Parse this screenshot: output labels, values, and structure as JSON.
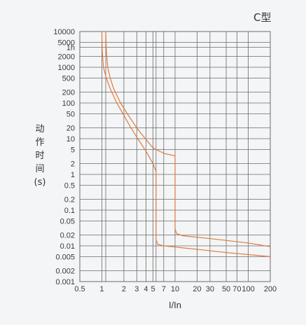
{
  "chart_data": {
    "type": "line",
    "title": "C型",
    "xlabel": "I/In",
    "ylabel": [
      "动",
      "作",
      "时",
      "间",
      "(s)"
    ],
    "x_scale": "log",
    "y_scale": "log",
    "xlim": [
      0.5,
      200
    ],
    "ylim": [
      0.001,
      10000
    ],
    "x_ticks": [
      {
        "value": 0.5,
        "label": "0.5"
      },
      {
        "value": 1,
        "label": "1"
      },
      {
        "value": 2,
        "label": "2"
      },
      {
        "value": 3,
        "label": "3"
      },
      {
        "value": 4,
        "label": "4"
      },
      {
        "value": 5,
        "label": "5"
      },
      {
        "value": 7,
        "label": "7"
      },
      {
        "value": 10,
        "label": "10"
      },
      {
        "value": 20,
        "label": "20"
      },
      {
        "value": 30,
        "label": "30"
      },
      {
        "value": 50,
        "label": "50"
      },
      {
        "value": 70,
        "label": "70"
      },
      {
        "value": 100,
        "label": "100"
      },
      {
        "value": 200,
        "label": "200"
      }
    ],
    "x_grid": [
      1,
      1.13,
      2,
      3,
      4,
      5,
      5.5,
      7,
      10,
      20,
      30,
      50,
      70,
      100,
      200
    ],
    "y_ticks": [
      {
        "value": 10000,
        "label": "10000"
      },
      {
        "value": 5000,
        "label": "5000"
      },
      {
        "value": 3600,
        "label": "1h"
      },
      {
        "value": 2000,
        "label": "2000"
      },
      {
        "value": 1000,
        "label": "1000"
      },
      {
        "value": 500,
        "label": "500"
      },
      {
        "value": 200,
        "label": "200"
      },
      {
        "value": 100,
        "label": "100"
      },
      {
        "value": 50,
        "label": "50"
      },
      {
        "value": 20,
        "label": "20"
      },
      {
        "value": 10,
        "label": "10"
      },
      {
        "value": 5,
        "label": "5"
      },
      {
        "value": 2,
        "label": "2"
      },
      {
        "value": 1,
        "label": "1"
      },
      {
        "value": 0.5,
        "label": "0.5"
      },
      {
        "value": 0.2,
        "label": "0.2"
      },
      {
        "value": 0.1,
        "label": "0.1"
      },
      {
        "value": 0.05,
        "label": "0.05"
      },
      {
        "value": 0.02,
        "label": "0.02"
      },
      {
        "value": 0.01,
        "label": "0.01"
      },
      {
        "value": 0.005,
        "label": "0.005"
      },
      {
        "value": 0.002,
        "label": "0.002"
      },
      {
        "value": 0.001,
        "label": "0.001"
      }
    ],
    "grid": true,
    "line_color": "#e07a3c",
    "grid_color": "#6b6b6b",
    "series": [
      {
        "values": [
          [
            1.0,
            10000
          ],
          [
            1.01,
            3000
          ],
          [
            1.05,
            1000
          ],
          [
            1.15,
            500
          ],
          [
            1.3,
            250
          ],
          [
            1.6,
            100
          ],
          [
            2.0,
            45
          ],
          [
            2.5,
            20
          ],
          [
            3.0,
            11
          ],
          [
            4.0,
            4.5
          ],
          [
            5.0,
            2
          ],
          [
            5.5,
            1.2
          ],
          [
            5.5,
            0.015
          ],
          [
            5.8,
            0.011
          ],
          [
            7.0,
            0.01
          ],
          [
            20,
            0.008
          ],
          [
            50,
            0.0065
          ],
          [
            200,
            0.005
          ]
        ]
      },
      {
        "values": [
          [
            1.13,
            10000
          ],
          [
            1.15,
            3000
          ],
          [
            1.2,
            1000
          ],
          [
            1.3,
            500
          ],
          [
            1.45,
            250
          ],
          [
            1.8,
            100
          ],
          [
            2.3,
            45
          ],
          [
            3.0,
            20
          ],
          [
            4.0,
            9.5
          ],
          [
            5.0,
            5.5
          ],
          [
            7.0,
            3.9
          ],
          [
            10,
            3.3
          ],
          [
            10,
            0.03
          ],
          [
            10.5,
            0.022
          ],
          [
            13,
            0.019
          ],
          [
            30,
            0.016
          ],
          [
            100,
            0.012
          ],
          [
            200,
            0.0095
          ]
        ]
      }
    ]
  }
}
